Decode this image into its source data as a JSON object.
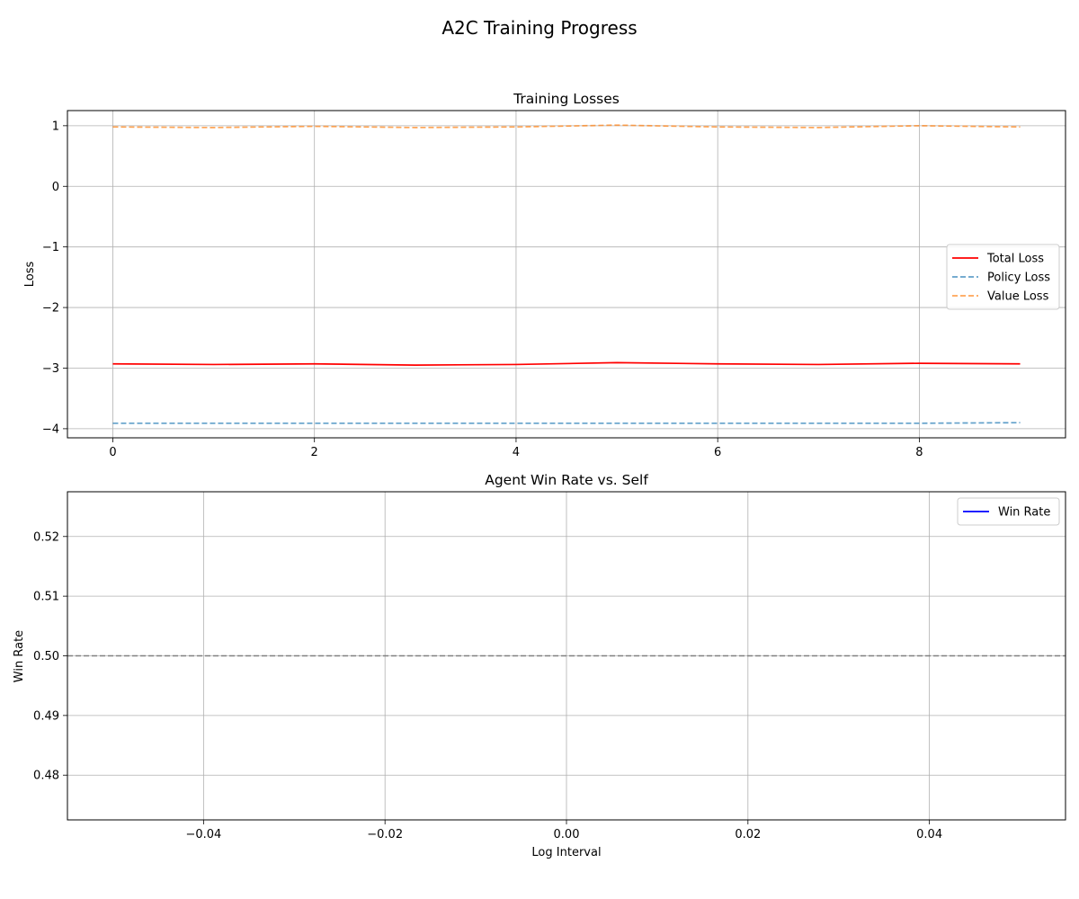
{
  "figure": {
    "suptitle": "A2C Training Progress"
  },
  "chart_data": [
    {
      "type": "line",
      "title": "Training Losses",
      "xlabel": "",
      "ylabel": "Loss",
      "xlim": [
        -0.45,
        9.45
      ],
      "ylim": [
        -4.15,
        1.25
      ],
      "xticks": [
        0,
        2,
        4,
        6,
        8
      ],
      "xtick_labels": [
        "0",
        "2",
        "4",
        "6",
        "8"
      ],
      "yticks": [
        1,
        0,
        -1,
        -2,
        -3,
        -4
      ],
      "ytick_labels": [
        "1",
        "0",
        "−1",
        "−2",
        "−3",
        "−4"
      ],
      "grid": true,
      "legend": "center-right",
      "x": [
        0,
        1,
        2,
        3,
        4,
        5,
        6,
        7,
        8,
        9
      ],
      "series": [
        {
          "name": "Total Loss",
          "values": [
            -2.93,
            -2.94,
            -2.93,
            -2.95,
            -2.94,
            -2.91,
            -2.93,
            -2.94,
            -2.92,
            -2.93
          ],
          "color": "#ff0000",
          "dash": "solid"
        },
        {
          "name": "Policy Loss",
          "values": [
            -3.91,
            -3.91,
            -3.91,
            -3.91,
            -3.91,
            -3.91,
            -3.91,
            -3.91,
            -3.91,
            -3.9
          ],
          "color": "#1f77b4",
          "dash": "dashed"
        },
        {
          "name": "Value Loss",
          "values": [
            0.98,
            0.97,
            0.99,
            0.97,
            0.98,
            1.01,
            0.98,
            0.97,
            1.0,
            0.98
          ],
          "color": "#ff7f0e",
          "dash": "dashed"
        }
      ]
    },
    {
      "type": "line",
      "title": "Agent Win Rate vs. Self",
      "xlabel": "Log Interval",
      "ylabel": "Win Rate",
      "xlim": [
        -0.055,
        0.055
      ],
      "ylim": [
        0.4725,
        0.5275
      ],
      "xticks": [
        -0.04,
        -0.02,
        0.0,
        0.02,
        0.04
      ],
      "xtick_labels": [
        "−0.04",
        "−0.02",
        "0.00",
        "0.02",
        "0.04"
      ],
      "yticks": [
        0.52,
        0.51,
        0.5,
        0.49,
        0.48
      ],
      "ytick_labels": [
        "0.52",
        "0.51",
        "0.50",
        "0.49",
        "0.48"
      ],
      "grid": true,
      "legend": "top-right",
      "series": [
        {
          "name": "Win Rate",
          "x": [],
          "values": [],
          "color": "#0000ff",
          "dash": "solid"
        }
      ],
      "reference_line": {
        "y": 0.5,
        "color": "#808080",
        "dash": "dashed"
      }
    }
  ]
}
